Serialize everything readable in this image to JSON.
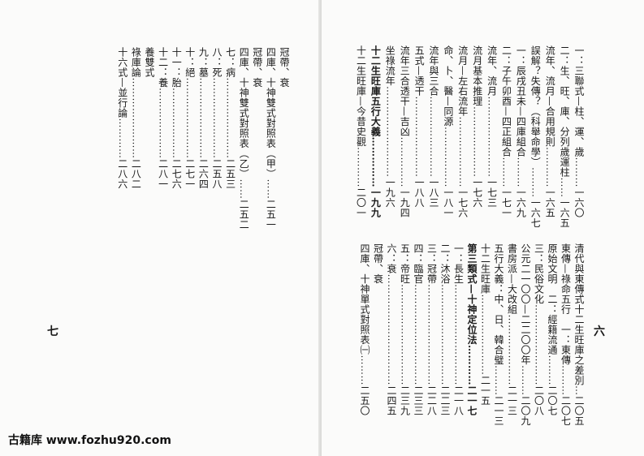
{
  "left_page": {
    "page_number": "七",
    "columns": [
      "冠帶、衰",
      "四庫、十神雙式對照表（甲）……二五一",
      "冠帶、衰",
      "四庫、十神雙式對照表（乙）……二五二",
      "七：病……………………二五三",
      "八：死……………………二五八",
      "九：墓……………………二六四",
      "十：絕……………………二七一",
      "十一：胎…………………二七六",
      "十二：養…………………二八一",
      "養雙式",
      "祿庫論……………………二八二",
      "十六式—並行論…………二八六"
    ]
  },
  "right_page": {
    "page_number": "六",
    "top_columns": [
      "一：三聯式—柱、運、歲………一六〇",
      "二：生、旺、庫、分列歲運柱……一六五",
      "流年、流月—合用規則…………一六五",
      "誤解？失傳？（科舉命學）………一六七",
      "一：辰戌丑未—四庫組合………一六九",
      "二：子午卯酉—四正組合………一七一",
      "流年、流月……………………一七三",
      "流月基本推理…………………一七六",
      "流月—左右流年…………………一七六",
      "命、卜、醫—同源………………一八一",
      "流年與三合……………………一八三",
      "五式—透干……………………一八八",
      "流年三合透干—吉凶……………一九四",
      "坐祿流年………………………一九六",
      "十二生旺庫五行大義……………一九九",
      "十二生旺庫—今昔史觀…………二〇一"
    ],
    "bold_top_index": 14,
    "bottom_columns": [
      "清代與東傳式十二生旺庫之差別…二〇五",
      "東傳—祿命五行　一：東傳………二〇七",
      "原始文明　二：經籍流通………二〇七",
      "三：民俗文化……………………二〇八",
      "公元二一〇〇—二二〇〇年………二〇九",
      "書房派—大改組…………………二一三",
      "五行大義：中、日、韓合璧………二一三",
      "十二生旺庫……………………二一五",
      "第三類式—十神定位法…………二一七",
      "一：長生…………………………二一八",
      "二：沐浴…………………………二二三",
      "三：冠帶…………………………二二八",
      "四：臨官…………………………二三三",
      "五：帝旺…………………………二三九",
      "六：衰……………………………二四五",
      "冠帶、衰",
      "四庫、十神單式對照表㈠………二五〇"
    ],
    "bold_bottom_index": 8
  },
  "footer": {
    "watermark": "古籍库 www.fozhu920.com"
  }
}
